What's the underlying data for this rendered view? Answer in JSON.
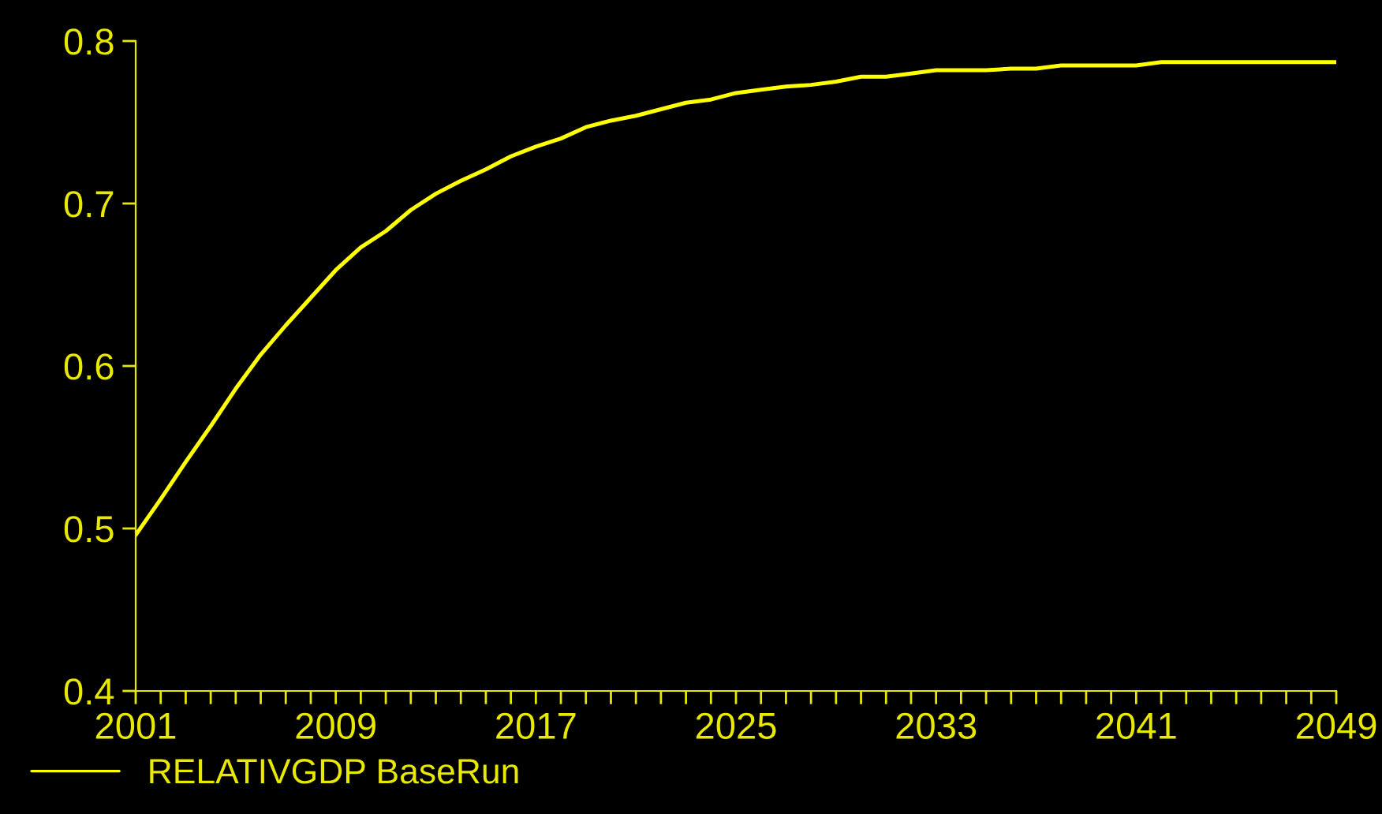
{
  "chart_data": {
    "type": "line",
    "x": [
      2001,
      2002,
      2003,
      2004,
      2005,
      2006,
      2007,
      2008,
      2009,
      2010,
      2011,
      2012,
      2013,
      2014,
      2015,
      2016,
      2017,
      2018,
      2019,
      2020,
      2021,
      2022,
      2023,
      2024,
      2025,
      2026,
      2027,
      2028,
      2029,
      2030,
      2031,
      2032,
      2033,
      2034,
      2035,
      2036,
      2037,
      2038,
      2039,
      2040,
      2041,
      2042,
      2043,
      2044,
      2045,
      2046,
      2047,
      2048,
      2049
    ],
    "series": [
      {
        "name": "RELATIVGDP BaseRun",
        "color": "#ffff00",
        "values": [
          0.496,
          0.518,
          0.541,
          0.563,
          0.586,
          0.607,
          0.625,
          0.642,
          0.659,
          0.673,
          0.683,
          0.696,
          0.706,
          0.714,
          0.721,
          0.729,
          0.735,
          0.74,
          0.747,
          0.751,
          0.754,
          0.758,
          0.762,
          0.764,
          0.768,
          0.77,
          0.772,
          0.773,
          0.775,
          0.778,
          0.778,
          0.78,
          0.782,
          0.782,
          0.782,
          0.783,
          0.783,
          0.785,
          0.785,
          0.785,
          0.785,
          0.787,
          0.787,
          0.787,
          0.787,
          0.787,
          0.787,
          0.787,
          0.787
        ]
      }
    ],
    "xlim": [
      2001,
      2049
    ],
    "ylim": [
      0.4,
      0.8
    ],
    "xticks": [
      2001,
      {
        "value": 2002,
        "label": null
      },
      {
        "value": 2003,
        "label": null
      },
      {
        "value": 2004,
        "label": null
      },
      {
        "value": 2005,
        "label": null
      },
      {
        "value": 2006,
        "label": null
      },
      {
        "value": 2007,
        "label": null
      },
      {
        "value": 2008,
        "label": null
      },
      2009,
      {
        "value": 2010,
        "label": null
      },
      {
        "value": 2011,
        "label": null
      },
      {
        "value": 2012,
        "label": null
      },
      {
        "value": 2013,
        "label": null
      },
      {
        "value": 2014,
        "label": null
      },
      {
        "value": 2015,
        "label": null
      },
      {
        "value": 2016,
        "label": null
      },
      2017,
      {
        "value": 2018,
        "label": null
      },
      {
        "value": 2019,
        "label": null
      },
      {
        "value": 2020,
        "label": null
      },
      {
        "value": 2021,
        "label": null
      },
      {
        "value": 2022,
        "label": null
      },
      {
        "value": 2023,
        "label": null
      },
      {
        "value": 2024,
        "label": null
      },
      2025,
      {
        "value": 2026,
        "label": null
      },
      {
        "value": 2027,
        "label": null
      },
      {
        "value": 2028,
        "label": null
      },
      {
        "value": 2029,
        "label": null
      },
      {
        "value": 2030,
        "label": null
      },
      {
        "value": 2031,
        "label": null
      },
      {
        "value": 2032,
        "label": null
      },
      2033,
      {
        "value": 2034,
        "label": null
      },
      {
        "value": 2035,
        "label": null
      },
      {
        "value": 2036,
        "label": null
      },
      {
        "value": 2037,
        "label": null
      },
      {
        "value": 2038,
        "label": null
      },
      {
        "value": 2039,
        "label": null
      },
      {
        "value": 2040,
        "label": null
      },
      2041,
      {
        "value": 2042,
        "label": null
      },
      {
        "value": 2043,
        "label": null
      },
      {
        "value": 2044,
        "label": null
      },
      {
        "value": 2045,
        "label": null
      },
      {
        "value": 2046,
        "label": null
      },
      {
        "value": 2047,
        "label": null
      },
      {
        "value": 2048,
        "label": null
      },
      2049
    ],
    "yticks": [
      0.4,
      0.5,
      0.6,
      0.7,
      0.8
    ],
    "grid": false,
    "legend": "bottom left",
    "marker": "none",
    "line_style": "solid"
  }
}
